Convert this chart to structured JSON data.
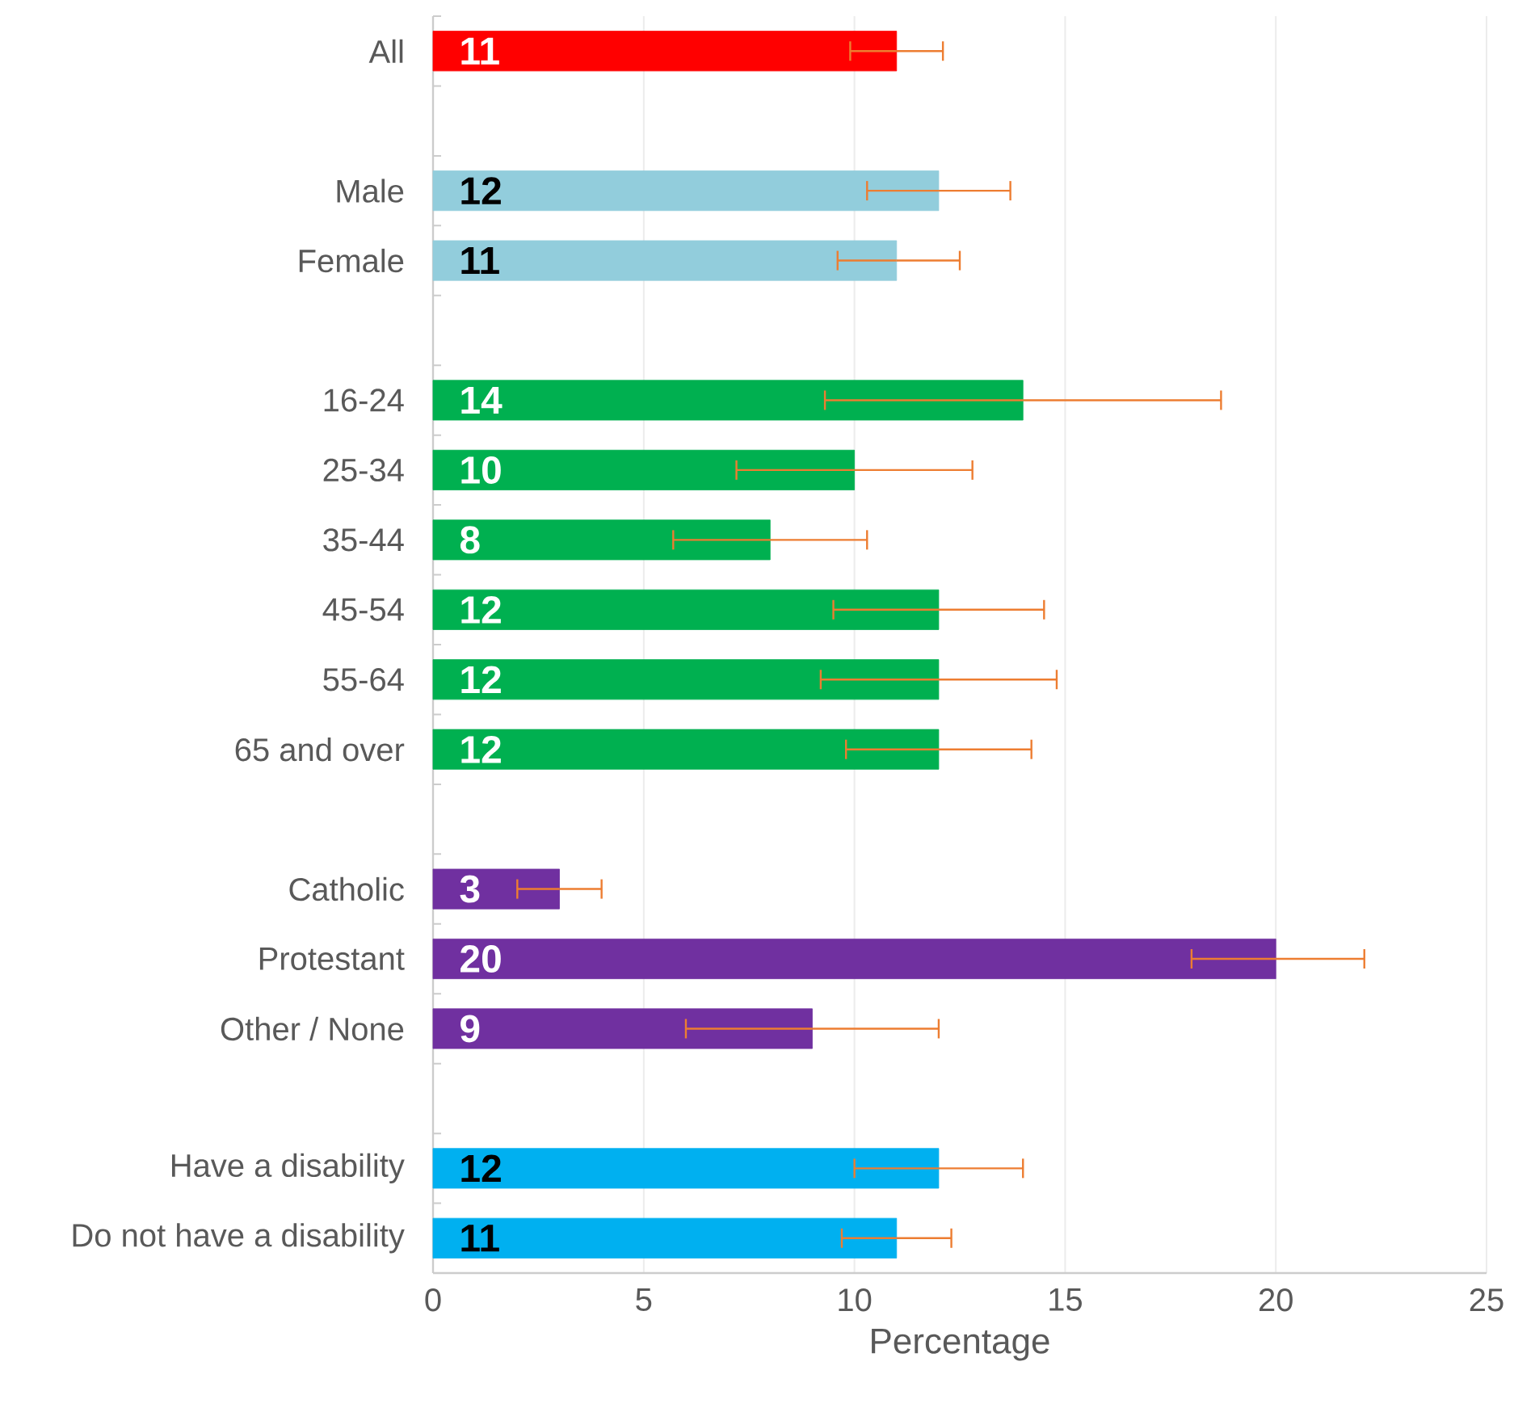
{
  "chart_data": {
    "type": "bar",
    "orientation": "horizontal",
    "xlabel": "Percentage",
    "categories": [
      "All",
      null,
      "Male",
      "Female",
      null,
      "16-24",
      "25-34",
      "35-44",
      "45-54",
      "55-64",
      "65 and over",
      null,
      "Catholic",
      "Protestant",
      "Other / None",
      null,
      "Have a disability",
      "Do not have a disability"
    ],
    "values": [
      11,
      null,
      12,
      11,
      null,
      14,
      10,
      8,
      12,
      12,
      12,
      null,
      3,
      20,
      9,
      null,
      12,
      11
    ],
    "colors": [
      "#ff0000",
      null,
      "#92cddc",
      "#92cddc",
      null,
      "#00b050",
      "#00b050",
      "#00b050",
      "#00b050",
      "#00b050",
      "#00b050",
      null,
      "#7030a0",
      "#7030a0",
      "#7030a0",
      null,
      "#00b0f0",
      "#00b0f0"
    ],
    "errors": [
      [
        9.9,
        12.1
      ],
      null,
      [
        10.3,
        13.7
      ],
      [
        9.6,
        12.5
      ],
      null,
      [
        9.3,
        18.7
      ],
      [
        7.2,
        12.8
      ],
      [
        5.7,
        10.3
      ],
      [
        9.5,
        14.5
      ],
      [
        9.2,
        14.8
      ],
      [
        9.8,
        14.2
      ],
      null,
      [
        2.0,
        4.0
      ],
      [
        18.0,
        22.1
      ],
      [
        6.0,
        12.0
      ],
      null,
      [
        10.0,
        14.0
      ],
      [
        9.7,
        12.3
      ]
    ],
    "xlim": [
      0,
      25
    ],
    "xticks": [
      0,
      5,
      10,
      15,
      20,
      25
    ],
    "grid": "x",
    "data_labels": true
  }
}
